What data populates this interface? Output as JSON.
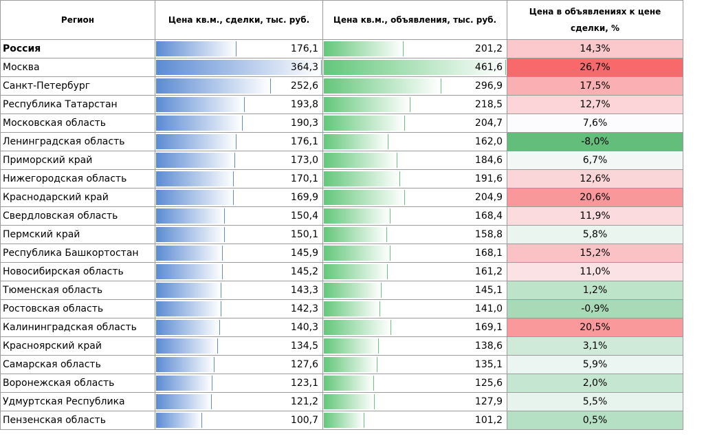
{
  "table": {
    "headers": [
      "Регион",
      "Цена кв.м., сделки, тыс. руб.",
      "Цена кв.м., объявления, тыс. руб.",
      "Цена в объявлениях к цене сделки, %"
    ],
    "rows": [
      [
        "Россия",
        {
          "value": 176.1,
          "label": "176,1"
        },
        {
          "value": 201.2,
          "label": "201,2"
        },
        {
          "value": 14.3,
          "label": "14,3%"
        }
      ],
      [
        "Москва",
        {
          "value": 364.3,
          "label": "364,3"
        },
        {
          "value": 461.6,
          "label": "461,6"
        },
        {
          "value": 26.7,
          "label": "26,7%"
        }
      ],
      [
        "Санкт-Петербург",
        {
          "value": 252.6,
          "label": "252,6"
        },
        {
          "value": 296.9,
          "label": "296,9"
        },
        {
          "value": 17.5,
          "label": "17,5%"
        }
      ],
      [
        "Республика Татарстан",
        {
          "value": 193.8,
          "label": "193,8"
        },
        {
          "value": 218.5,
          "label": "218,5"
        },
        {
          "value": 12.7,
          "label": "12,7%"
        }
      ],
      [
        "Московская область",
        {
          "value": 190.3,
          "label": "190,3"
        },
        {
          "value": 204.7,
          "label": "204,7"
        },
        {
          "value": 7.6,
          "label": "7,6%"
        }
      ],
      [
        "Ленинградская область",
        {
          "value": 176.1,
          "label": "176,1"
        },
        {
          "value": 162.0,
          "label": "162,0"
        },
        {
          "value": -8.0,
          "label": "-8,0%"
        }
      ],
      [
        "Приморский край",
        {
          "value": 173.0,
          "label": "173,0"
        },
        {
          "value": 184.6,
          "label": "184,6"
        },
        {
          "value": 6.7,
          "label": "6,7%"
        }
      ],
      [
        "Нижегородская область",
        {
          "value": 170.1,
          "label": "170,1"
        },
        {
          "value": 191.6,
          "label": "191,6"
        },
        {
          "value": 12.6,
          "label": "12,6%"
        }
      ],
      [
        "Краснодарский край",
        {
          "value": 169.9,
          "label": "169,9"
        },
        {
          "value": 204.9,
          "label": "204,9"
        },
        {
          "value": 20.6,
          "label": "20,6%"
        }
      ],
      [
        "Свердловская область",
        {
          "value": 150.4,
          "label": "150,4"
        },
        {
          "value": 168.4,
          "label": "168,4"
        },
        {
          "value": 11.9,
          "label": "11,9%"
        }
      ],
      [
        "Пермский край",
        {
          "value": 150.1,
          "label": "150,1"
        },
        {
          "value": 158.8,
          "label": "158,8"
        },
        {
          "value": 5.8,
          "label": "5,8%"
        }
      ],
      [
        "Республика Башкортостан",
        {
          "value": 145.9,
          "label": "145,9"
        },
        {
          "value": 168.1,
          "label": "168,1"
        },
        {
          "value": 15.2,
          "label": "15,2%"
        }
      ],
      [
        "Новосибирская область",
        {
          "value": 145.2,
          "label": "145,2"
        },
        {
          "value": 161.2,
          "label": "161,2"
        },
        {
          "value": 11.0,
          "label": "11,0%"
        }
      ],
      [
        "Тюменская область",
        {
          "value": 143.3,
          "label": "143,3"
        },
        {
          "value": 145.1,
          "label": "145,1"
        },
        {
          "value": 1.2,
          "label": "1,2%"
        }
      ],
      [
        "Ростовская область",
        {
          "value": 142.3,
          "label": "142,3"
        },
        {
          "value": 141.0,
          "label": "141,0"
        },
        {
          "value": -0.9,
          "label": "-0,9%"
        }
      ],
      [
        "Калининградская область",
        {
          "value": 140.3,
          "label": "140,3"
        },
        {
          "value": 169.1,
          "label": "169,1"
        },
        {
          "value": 20.5,
          "label": "20,5%"
        }
      ],
      [
        "Красноярский край",
        {
          "value": 134.5,
          "label": "134,5"
        },
        {
          "value": 138.6,
          "label": "138,6"
        },
        {
          "value": 3.1,
          "label": "3,1%"
        }
      ],
      [
        "Самарская область",
        {
          "value": 127.6,
          "label": "127,6"
        },
        {
          "value": 135.1,
          "label": "135,1"
        },
        {
          "value": 5.9,
          "label": "5,9%"
        }
      ],
      [
        "Воронежская область",
        {
          "value": 123.1,
          "label": "123,1"
        },
        {
          "value": 125.6,
          "label": "125,6"
        },
        {
          "value": 2.0,
          "label": "2,0%"
        }
      ],
      [
        "Удмуртская Республика",
        {
          "value": 121.2,
          "label": "121,2"
        },
        {
          "value": 127.9,
          "label": "127,9"
        },
        {
          "value": 5.5,
          "label": "5,5%"
        }
      ],
      [
        "Пензенская область",
        {
          "value": 100.7,
          "label": "100,7"
        },
        {
          "value": 101.2,
          "label": "101,2"
        },
        {
          "value": 0.5,
          "label": "0,5%"
        }
      ]
    ]
  }
}
